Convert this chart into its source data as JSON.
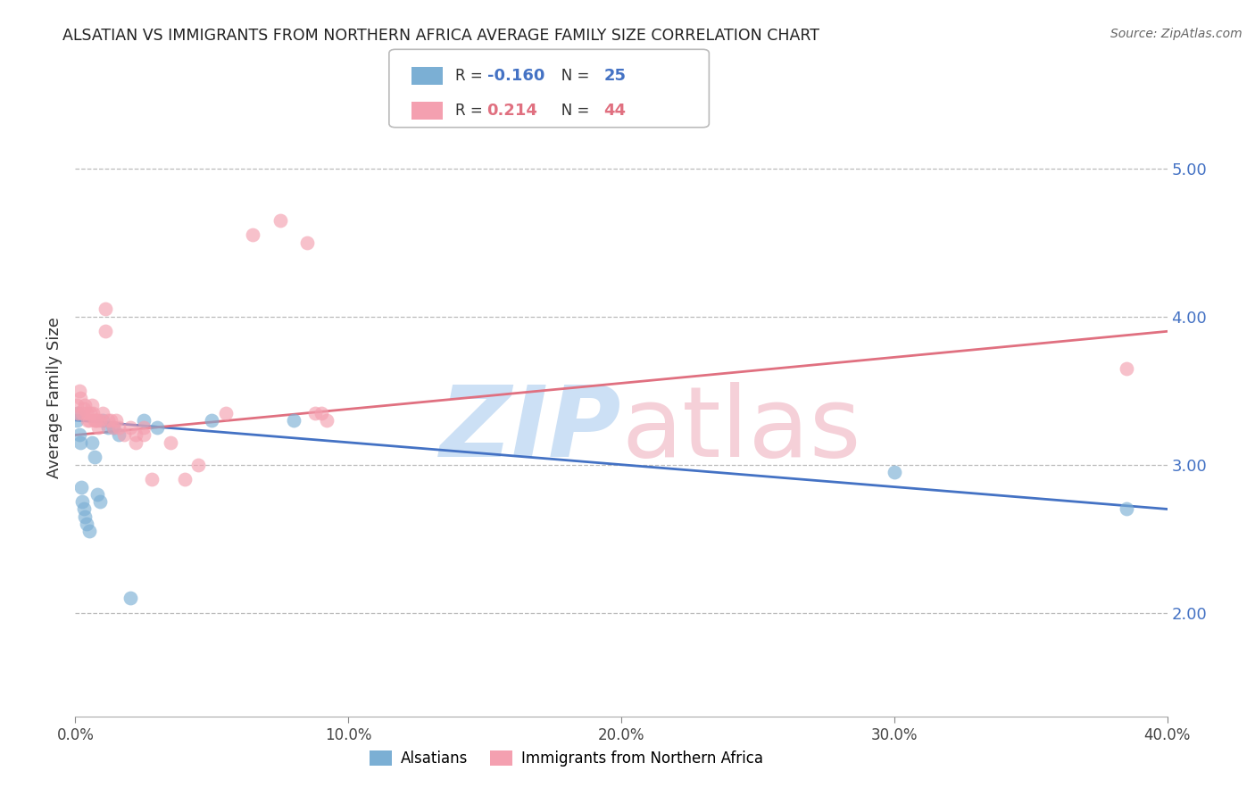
{
  "title": "ALSATIAN VS IMMIGRANTS FROM NORTHERN AFRICA AVERAGE FAMILY SIZE CORRELATION CHART",
  "source": "Source: ZipAtlas.com",
  "ylabel": "Average Family Size",
  "right_yticks": [
    2.0,
    3.0,
    4.0,
    5.0
  ],
  "ylim": [
    1.3,
    5.6
  ],
  "xlim": [
    0.0,
    40.0
  ],
  "blue_R": "-0.160",
  "blue_N": "25",
  "pink_R": "0.214",
  "pink_N": "44",
  "blue_color": "#7bafd4",
  "pink_color": "#f4a0b0",
  "blue_line_color": "#4472c4",
  "pink_line_color": "#e07080",
  "watermark_zip_color": "#cce0f5",
  "watermark_atlas_color": "#f5d0d8",
  "blue_scatter_x": [
    0.05,
    0.1,
    0.15,
    0.18,
    0.22,
    0.25,
    0.3,
    0.35,
    0.4,
    0.5,
    0.6,
    0.7,
    0.8,
    0.9,
    1.0,
    1.2,
    1.4,
    1.6,
    2.0,
    2.5,
    3.0,
    5.0,
    8.0,
    30.0,
    38.5
  ],
  "blue_scatter_y": [
    3.3,
    3.35,
    3.2,
    3.15,
    2.85,
    2.75,
    2.7,
    2.65,
    2.6,
    2.55,
    3.15,
    3.05,
    2.8,
    2.75,
    3.3,
    3.25,
    3.25,
    3.2,
    2.1,
    3.3,
    3.25,
    3.3,
    3.3,
    2.95,
    2.7
  ],
  "pink_scatter_x": [
    0.05,
    0.1,
    0.15,
    0.2,
    0.25,
    0.3,
    0.35,
    0.4,
    0.45,
    0.5,
    0.55,
    0.6,
    0.65,
    0.7,
    0.75,
    0.8,
    0.85,
    0.9,
    1.0,
    1.1,
    1.2,
    1.3,
    1.4,
    1.5,
    1.6,
    1.8,
    2.0,
    2.2,
    2.5,
    2.8,
    3.5,
    4.0,
    4.5,
    5.5,
    6.5,
    7.5,
    8.5,
    8.8,
    9.0,
    9.2,
    2.2,
    2.5,
    38.5,
    1.1
  ],
  "pink_scatter_y": [
    3.4,
    3.35,
    3.5,
    3.45,
    3.35,
    3.38,
    3.4,
    3.35,
    3.3,
    3.3,
    3.35,
    3.4,
    3.35,
    3.3,
    3.3,
    3.3,
    3.25,
    3.3,
    3.35,
    4.05,
    3.3,
    3.3,
    3.25,
    3.3,
    3.25,
    3.2,
    3.25,
    3.15,
    3.2,
    2.9,
    3.15,
    2.9,
    3.0,
    3.35,
    4.55,
    4.65,
    4.5,
    3.35,
    3.35,
    3.3,
    3.2,
    3.25,
    3.65,
    3.9
  ],
  "blue_line_x0": 0.0,
  "blue_line_y0": 3.3,
  "blue_line_x1": 40.0,
  "blue_line_y1": 2.7,
  "pink_line_x0": 0.0,
  "pink_line_y0": 3.2,
  "pink_line_x1": 40.0,
  "pink_line_y1": 3.9
}
